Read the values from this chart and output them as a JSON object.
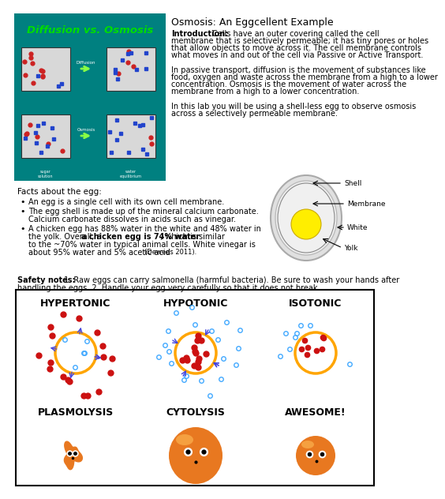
{
  "title": "Osmosis: An Eggcellent Example",
  "bg_color": "#ffffff",
  "intro_label": "Introduction:",
  "intro_text": " Cells have an outer covering called the cell\nmembrane that is selectively permeable; it has tiny pores or holes\nthat allow objects to move across it. The cell membrane controls\nwhat moves in and out of the cell via Passive or Active Transport.",
  "para2": "In passive transport, diffusion is the movement of substances like\nfood, oxygen and waste across the membrane from a high to a lower\nconcentration. Osmosis is the movement of water across the\nmembrane from a high to a lower concentration.",
  "para3": "In this lab you will be using a shell-less egg to observe osmosis\nacross a selectively permeable membrane.",
  "facts_title": "Facts about the egg:",
  "bullet1": "An egg is a single cell with its own cell membrane.",
  "bullet2": "The egg shell is made up of the mineral calcium carbonate.\n  Calcium carbonate dissolves in acids such as vinegar.",
  "bullet3a": "A chicken egg has 88% water in the white and 48% water in",
  "bullet3b": "the yolk. Overall, a ",
  "bullet3bold": "a chicken egg is 74% water",
  "bullet3c": ", which is similar",
  "bullet3d": "to the ~70% water in typical animal cells. White vinegar is",
  "bullet3e": "about 95% water and 5% acetic acid ",
  "bullet3cite": "(Dewees 2011).",
  "safety_label": "Safety notes:",
  "safety_text": " 1. Raw eggs can carry salmonella (harmful bacteria). Be sure to wash your hands after\nhandling the eggs. 2. Handle your egg very carefully so that it does not break.",
  "box_labels": [
    "HYPERTONIC",
    "HYPOTONIC",
    "ISOTONIC"
  ],
  "box_sublabels": [
    "PLASMOLYSIS",
    "CYTOLYSIS",
    "AWESOME!"
  ],
  "teal_bg": "#008080",
  "green_title": "#00dd00",
  "egg_yolk_color": "#ffee00",
  "diffusion_title": "Diffusion vs. Osmosis"
}
